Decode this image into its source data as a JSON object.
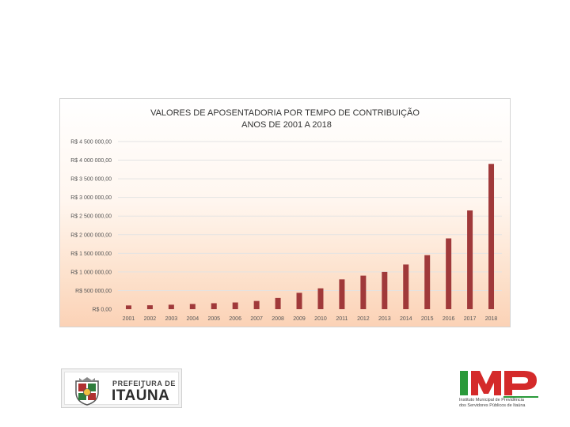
{
  "chart_data": {
    "type": "bar",
    "title": "VALORES DE APOSENTADORIA POR TEMPO DE CONTRIBUIÇÃO",
    "subtitle": "ANOS DE 2001 A 2018",
    "xlabel": "",
    "ylabel": "",
    "ylim": [
      0,
      4500000
    ],
    "grid": true,
    "legend": "none",
    "categories": [
      "2001",
      "2002",
      "2003",
      "2004",
      "2005",
      "2006",
      "2007",
      "2008",
      "2009",
      "2010",
      "2011",
      "2012",
      "2013",
      "2014",
      "2015",
      "2016",
      "2017",
      "2018"
    ],
    "series": [
      {
        "name": "Valores",
        "color": "#a0393a",
        "values": [
          100000,
          105000,
          120000,
          140000,
          160000,
          180000,
          220000,
          300000,
          440000,
          560000,
          800000,
          900000,
          1000000,
          1200000,
          1450000,
          1900000,
          2650000,
          3900000
        ]
      }
    ],
    "yticks": [
      {
        "value": 4500000,
        "label": "R$ 4 500 000,00"
      },
      {
        "value": 4000000,
        "label": "R$ 4 000 000,00"
      },
      {
        "value": 3500000,
        "label": "R$ 3 500 000,00"
      },
      {
        "value": 3000000,
        "label": "R$ 3 000 000,00"
      },
      {
        "value": 2500000,
        "label": "R$ 2 500 000,00"
      },
      {
        "value": 2000000,
        "label": "R$ 2 000 000,00"
      },
      {
        "value": 1500000,
        "label": "R$ 1 500 000,00"
      },
      {
        "value": 1000000,
        "label": "R$ 1 000 000,00"
      },
      {
        "value": 500000,
        "label": "R$ 500 000,00"
      },
      {
        "value": 0,
        "label": "R$ 0,00"
      }
    ]
  },
  "logos": {
    "left": {
      "line1": "PREFEITURA DE",
      "line2": "ITAÚNA"
    },
    "right": {
      "acronym": "IMP",
      "subtitle_line1": "Instituto Municipal de Previdência",
      "subtitle_line2": "dos Servidores Públicos de Itaúna"
    }
  },
  "colors": {
    "bar": "#a0393a",
    "imp_green": "#2a9a3a",
    "imp_red": "#d42a2a"
  }
}
